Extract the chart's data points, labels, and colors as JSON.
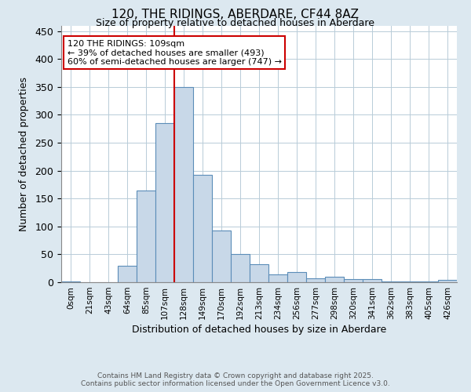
{
  "title1": "120, THE RIDINGS, ABERDARE, CF44 8AZ",
  "title2": "Size of property relative to detached houses in Aberdare",
  "xlabel": "Distribution of detached houses by size in Aberdare",
  "ylabel": "Number of detached properties",
  "bar_labels": [
    "0sqm",
    "21sqm",
    "43sqm",
    "64sqm",
    "85sqm",
    "107sqm",
    "128sqm",
    "149sqm",
    "170sqm",
    "192sqm",
    "213sqm",
    "234sqm",
    "256sqm",
    "277sqm",
    "298sqm",
    "320sqm",
    "341sqm",
    "362sqm",
    "383sqm",
    "405sqm",
    "426sqm"
  ],
  "bar_values": [
    2,
    0,
    0,
    30,
    165,
    285,
    350,
    193,
    93,
    50,
    32,
    14,
    18,
    7,
    10,
    5,
    5,
    2,
    1,
    1,
    4
  ],
  "bar_color": "#c8d8e8",
  "bar_edgecolor": "#5b8db8",
  "ylim": [
    0,
    460
  ],
  "yticks": [
    0,
    50,
    100,
    150,
    200,
    250,
    300,
    350,
    400,
    450
  ],
  "vline_x": 5.5,
  "vline_color": "#cc0000",
  "annotation_title": "120 THE RIDINGS: 109sqm",
  "annotation_line1": "← 39% of detached houses are smaller (493)",
  "annotation_line2": "60% of semi-detached houses are larger (747) →",
  "annotation_box_color": "#ffffff",
  "annotation_box_edgecolor": "#cc0000",
  "footer1": "Contains HM Land Registry data © Crown copyright and database right 2025.",
  "footer2": "Contains public sector information licensed under the Open Government Licence v3.0.",
  "bg_color": "#dce8f0",
  "plot_bg_color": "#ffffff",
  "grid_color": "#b8ccd8"
}
